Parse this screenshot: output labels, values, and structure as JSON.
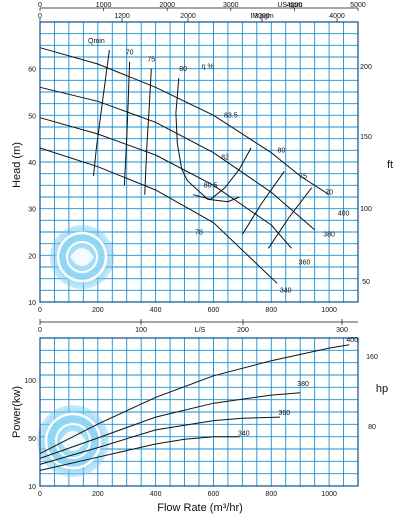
{
  "colors": {
    "grid": "#1a8fd6",
    "frame": "#0a4f8f",
    "curve": "#111111",
    "logo": "#6cc6ee"
  },
  "logo": {
    "name": "pump-impeller-watermark-icon"
  },
  "chart_data": [
    {
      "type": "line",
      "title": "",
      "ylabel": "Head (m)",
      "y_right_label": "ft",
      "xlim": [
        0,
        1100
      ],
      "ylim": [
        10,
        70
      ],
      "x_ticks": [
        "0",
        "200",
        "400",
        "600",
        "800",
        "1000"
      ],
      "y_ticks": [
        "10",
        "20",
        "30",
        "40",
        "50",
        "60"
      ],
      "y_right_ticks": [
        "50",
        "100",
        "150",
        "200"
      ],
      "top_axis_1": {
        "unit": "US gpm",
        "ticks": [
          "0",
          "1000",
          "2000",
          "3000",
          "4000",
          "5000"
        ]
      },
      "top_axis_2": {
        "unit": "IM.pgm",
        "ticks": [
          "0",
          "1200",
          "2000",
          "3000",
          "4000"
        ]
      },
      "grid": true,
      "series": [
        {
          "name": "400",
          "x": [
            0,
            200,
            400,
            600,
            800,
            900,
            1000
          ],
          "y": [
            64.5,
            61,
            56,
            50,
            42,
            37,
            33
          ]
        },
        {
          "name": "380",
          "x": [
            0,
            200,
            400,
            600,
            800,
            950
          ],
          "y": [
            56,
            53,
            48.5,
            42,
            33.5,
            25.5
          ]
        },
        {
          "name": "360",
          "x": [
            0,
            200,
            400,
            600,
            800,
            870
          ],
          "y": [
            49.5,
            46,
            41.5,
            35,
            26.5,
            21.5
          ]
        },
        {
          "name": "340",
          "x": [
            0,
            200,
            400,
            600,
            820
          ],
          "y": [
            43,
            39,
            34,
            27,
            14
          ]
        }
      ],
      "efficiency_label": "η %",
      "efficiency_curves": [
        {
          "label": "70",
          "x": [
            940,
            860,
            790
          ],
          "y": [
            34.5,
            28,
            21.5
          ]
        },
        {
          "label": "75",
          "x": [
            845,
            765,
            700
          ],
          "y": [
            38,
            31,
            24.5
          ]
        },
        {
          "label": "80",
          "x": [
            730,
            690,
            640,
            590,
            530
          ],
          "y": [
            43,
            38.5,
            34.5,
            32,
            33
          ]
        },
        {
          "label": "80",
          "x": [
            480,
            470,
            475,
            490,
            510,
            580,
            650,
            690
          ],
          "y": [
            58,
            50.5,
            44,
            38.5,
            36,
            32,
            31.5,
            32.5
          ]
        },
        {
          "label": "70",
          "x": [
            310,
            305,
            300,
            292
          ],
          "y": [
            61.5,
            53,
            45,
            35
          ]
        },
        {
          "label": "75",
          "x": [
            385,
            378,
            370,
            362
          ],
          "y": [
            60,
            52,
            44,
            33
          ]
        },
        {
          "label": "Qmin",
          "x": [
            240,
            225,
            210,
            195,
            185
          ],
          "y": [
            64,
            57,
            50,
            43,
            37
          ]
        }
      ],
      "efficiency_labels": [
        {
          "text": "70",
          "x": 310,
          "y": 63
        },
        {
          "text": "75",
          "x": 385,
          "y": 61.5
        },
        {
          "text": "80",
          "x": 495,
          "y": 59.5
        },
        {
          "text": "83.5",
          "x": 660,
          "y": 49.5
        },
        {
          "text": "82",
          "x": 640,
          "y": 40.5
        },
        {
          "text": "80.5",
          "x": 590,
          "y": 34.5
        },
        {
          "text": "78",
          "x": 550,
          "y": 24.5
        },
        {
          "text": "80",
          "x": 835,
          "y": 42
        },
        {
          "text": "75",
          "x": 910,
          "y": 36.5
        },
        {
          "text": "70",
          "x": 1000,
          "y": 33
        },
        {
          "text": "Qmin",
          "x": 195,
          "y": 65.5
        }
      ],
      "curve_labels": [
        {
          "text": "400",
          "x": 1050,
          "y": 28.5
        },
        {
          "text": "380",
          "x": 1000,
          "y": 24
        },
        {
          "text": "360",
          "x": 915,
          "y": 18
        },
        {
          "text": "340",
          "x": 850,
          "y": 12
        }
      ]
    },
    {
      "type": "line",
      "title": "",
      "xlabel": "Flow Rate (m³/hr)",
      "ylabel": "Power(kw)",
      "y_right_label": "hp",
      "xlim": [
        0,
        1100
      ],
      "ylim": [
        10,
        150
      ],
      "x_ticks": [
        "0",
        "200",
        "400",
        "600",
        "800",
        "1000"
      ],
      "y_ticks": [
        "10",
        "50",
        "100"
      ],
      "y_right_ticks": [
        "80",
        "160"
      ],
      "top_axis": {
        "unit": "L/S",
        "ticks": [
          "0",
          "100",
          "200",
          "300"
        ]
      },
      "grid": true,
      "series": [
        {
          "name": "400",
          "x": [
            0,
            200,
            400,
            600,
            800,
            1000,
            1070
          ],
          "y": [
            37,
            62,
            85,
            105,
            123,
            138,
            142
          ]
        },
        {
          "name": "380",
          "x": [
            0,
            200,
            400,
            600,
            800,
            900
          ],
          "y": [
            33,
            50,
            68,
            80,
            87,
            89
          ]
        },
        {
          "name": "360",
          "x": [
            0,
            200,
            400,
            600,
            700,
            830
          ],
          "y": [
            28,
            42,
            57,
            65,
            67,
            68
          ]
        },
        {
          "name": "340",
          "x": [
            0,
            200,
            400,
            500,
            600,
            690
          ],
          "y": [
            23,
            34,
            45,
            49,
            51,
            51
          ]
        }
      ],
      "curve_labels": [
        {
          "text": "400",
          "x": 1080,
          "y": 145
        },
        {
          "text": "380",
          "x": 910,
          "y": 95
        },
        {
          "text": "360",
          "x": 845,
          "y": 70
        },
        {
          "text": "340",
          "x": 705,
          "y": 52
        }
      ]
    }
  ]
}
